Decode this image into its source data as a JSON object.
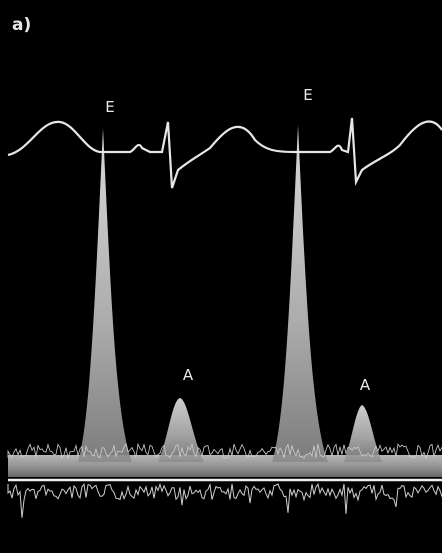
{
  "panel_label": "a)",
  "peaks": [
    {
      "label": "E"
    },
    {
      "label": "A"
    },
    {
      "label": "E"
    },
    {
      "label": "A"
    }
  ]
}
